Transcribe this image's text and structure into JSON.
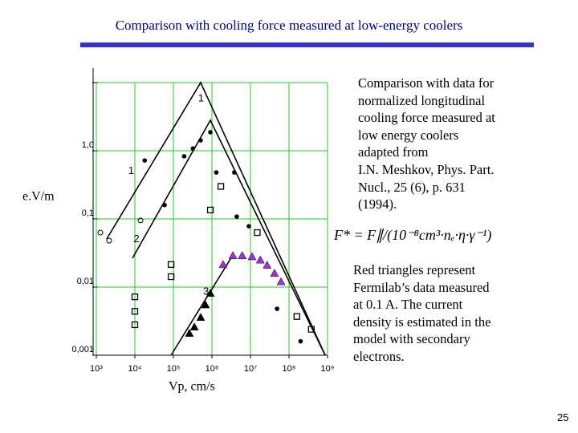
{
  "title": "Comparison with cooling force measured at low-energy coolers",
  "description": [
    "Comparison with data for",
    "normalized longitudinal",
    "cooling force measured at",
    "low energy coolers",
    "adapted from",
    "I.N. Meshkov, Phys. Part.",
    "Nucl., 25 (6), p. 631",
    "(1994)."
  ],
  "formula": "F* = F∥/(10⁻⁸cm³·nₑ·η·γ⁻¹)",
  "note": [
    "Red triangles represent",
    "Fermilab’s data measured",
    "at 0.1 A. The current",
    "density is estimated in the",
    "model with secondary",
    "electrons."
  ],
  "page_number": "25",
  "chart_data": {
    "type": "scatter",
    "xlabel": "Vp, cm/s",
    "ylabel": "e.V/m",
    "xscale": "log",
    "yscale": "log",
    "grid": true,
    "grid_color": "#22cc22",
    "xlim": [
      1000,
      1000000000
    ],
    "ylim": [
      0.001,
      10
    ],
    "xticks": [
      {
        "value": 1000,
        "label": "10³"
      },
      {
        "value": 10000,
        "label": "10⁴"
      },
      {
        "value": 100000,
        "label": "10⁵"
      },
      {
        "value": 1000000,
        "label": "10⁶"
      },
      {
        "value": 10000000,
        "label": "10⁷"
      },
      {
        "value": 100000000,
        "label": "10⁸"
      },
      {
        "value": 1000000000,
        "label": "10⁹"
      }
    ],
    "yticks": [
      {
        "value": 0.001,
        "label": "0,001"
      },
      {
        "value": 0.01,
        "label": "0,01"
      },
      {
        "value": 0.1,
        "label": "0,1"
      },
      {
        "value": 1,
        "label": "1,0"
      },
      10
    ],
    "series": [
      {
        "marker": "line",
        "color": "#000000",
        "x": [
          1860,
          510000,
          870000000
        ],
        "values": [
          0.0508,
          10,
          0.001
        ]
      },
      {
        "marker": "line",
        "color": "#000000",
        "x": [
          8700,
          910000,
          870000000
        ],
        "values": [
          0.0266,
          2.8,
          0.001
        ]
      },
      {
        "marker": "line",
        "color": "#000000",
        "x": [
          87000,
          3500000
        ],
        "values": [
          0.001,
          0.0295
        ]
      },
      {
        "marker": "dot",
        "color": "#000000",
        "x": [
          190000,
          320000,
          510000,
          910000,
          1300000,
          3800000,
          4400000,
          9100000,
          18000,
          59000,
          49000000,
          200000000
        ],
        "values": [
          0.83,
          1.08,
          1.42,
          1.87,
          0.48,
          0.48,
          0.108,
          0.078,
          0.72,
          0.16,
          0.0048,
          0.0016
        ]
      },
      {
        "marker": "square",
        "color": "#000000",
        "x": [
          87000,
          87000,
          10000,
          10000,
          10000,
          1700000,
          910000,
          15000000,
          160000000,
          380000000
        ],
        "values": [
          0.0214,
          0.0142,
          0.0072,
          0.0044,
          0.0028,
          0.3,
          0.135,
          0.063,
          0.0037,
          0.0024
        ]
      },
      {
        "marker": "circle",
        "color": "#000000",
        "x": [
          14000,
          2150,
          1270
        ],
        "values": [
          0.095,
          0.048,
          0.063
        ]
      },
      {
        "marker": "triangle",
        "color": "#000000",
        "x": [
          680000,
          510000,
          350000,
          260000,
          910000
        ],
        "values": [
          0.0055,
          0.0036,
          0.0026,
          0.0021,
          0.0081
        ]
      },
      {
        "marker": "triangle",
        "color": "#a030e0",
        "x": [
          1950000,
          3500000,
          6100000,
          11000000,
          18000000,
          27000000,
          42000000,
          62000000
        ],
        "values": [
          0.0214,
          0.029,
          0.029,
          0.028,
          0.025,
          0.021,
          0.016,
          0.012
        ]
      }
    ],
    "annotations": [
      {
        "text": "1",
        "x": 520000,
        "y": 5.8
      },
      {
        "text": "1",
        "x": 8000,
        "y": 0.5
      },
      {
        "text": "2",
        "x": 11000,
        "y": 0.05
      },
      {
        "text": "3",
        "x": 700000,
        "y": 0.0085
      }
    ]
  }
}
